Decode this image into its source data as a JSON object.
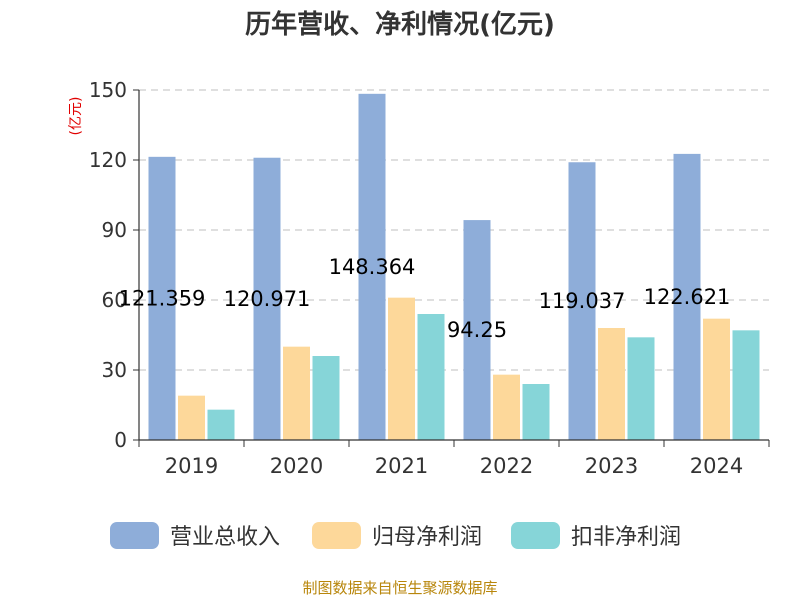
{
  "chart_data": {
    "type": "bar",
    "title": "历年营收、净利情况(亿元)",
    "unit_label": "(亿元)",
    "categories": [
      "2019",
      "2020",
      "2021",
      "2022",
      "2023",
      "2024"
    ],
    "ylim": [
      0,
      150
    ],
    "yticks": [
      0,
      30,
      60,
      90,
      120,
      150
    ],
    "grid": true,
    "legend_position": "bottom",
    "series": [
      {
        "name": "营业总收入",
        "color": "#8eadd9",
        "values": [
          121.359,
          120.971,
          148.364,
          94.25,
          119.037,
          122.621
        ],
        "labels": [
          "121.359",
          "120.971",
          "148.364",
          "94.25",
          "119.037",
          "122.621"
        ]
      },
      {
        "name": "归母净利润",
        "color": "#fdd89a",
        "values": [
          19,
          40,
          61,
          28,
          48,
          52
        ]
      },
      {
        "name": "扣非净利润",
        "color": "#86d5d8",
        "values": [
          13,
          36,
          54,
          24,
          44,
          47
        ]
      }
    ],
    "source": "制图数据来自恒生聚源数据库"
  }
}
